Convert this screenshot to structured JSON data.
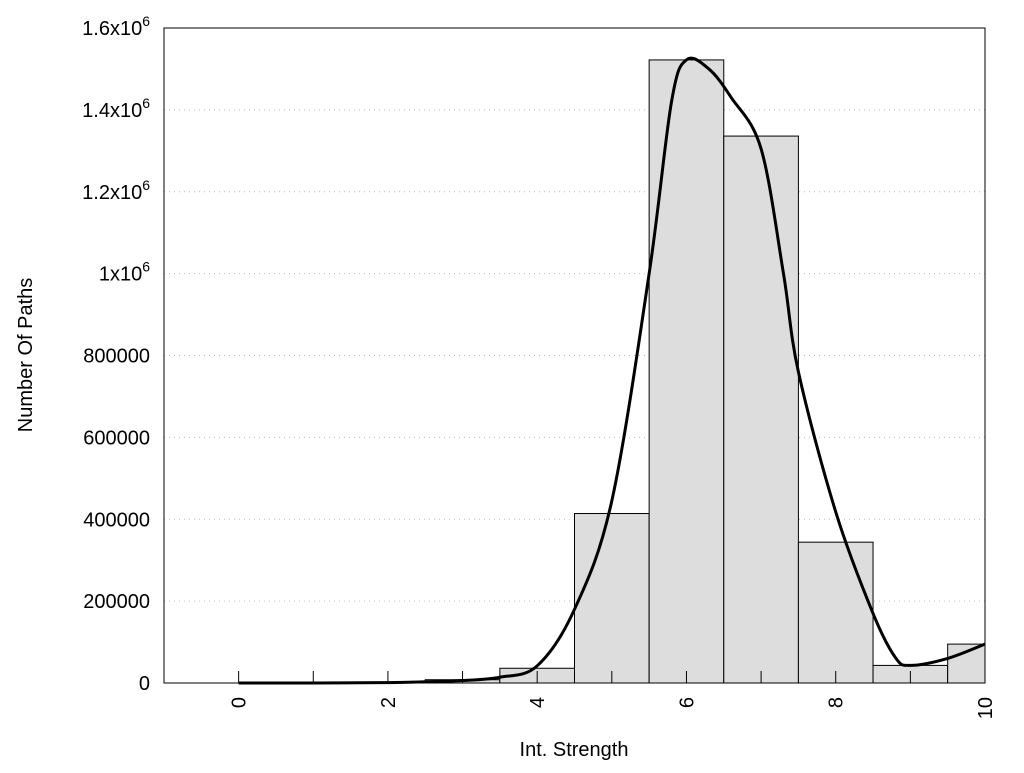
{
  "chart_data": {
    "type": "bar",
    "title": "",
    "xlabel": "Int. Strength",
    "ylabel": "Number Of Paths",
    "xlim": [
      -1,
      10
    ],
    "ylim": [
      0,
      1600000
    ],
    "grid": "horizontal-dotted",
    "x_ticks": [
      0,
      2,
      4,
      6,
      8,
      10
    ],
    "x_tick_labels": [
      "0",
      "2",
      "4",
      "6",
      "8",
      "10"
    ],
    "y_ticks": [
      0,
      200000,
      400000,
      600000,
      800000,
      1000000,
      1200000,
      1400000,
      1600000
    ],
    "y_tick_labels": [
      {
        "base": "0",
        "exp": ""
      },
      {
        "base": "200000",
        "exp": ""
      },
      {
        "base": "400000",
        "exp": ""
      },
      {
        "base": "600000",
        "exp": ""
      },
      {
        "base": "800000",
        "exp": ""
      },
      {
        "base": "1x10",
        "exp": "6"
      },
      {
        "base": "1.2x10",
        "exp": "6"
      },
      {
        "base": "1.4x10",
        "exp": "6"
      },
      {
        "base": "1.6x10",
        "exp": "6"
      }
    ],
    "bars": {
      "x": [
        0,
        1,
        2,
        3,
        4,
        5,
        6,
        7,
        8,
        9,
        10
      ],
      "values": [
        0,
        0,
        1000,
        8000,
        36000,
        414000,
        1522000,
        1336000,
        344000,
        43000,
        95000
      ],
      "width": 1,
      "color": "#dddddd"
    },
    "curve": {
      "x": [
        0,
        1,
        2,
        2.5,
        3,
        3.5,
        4,
        4.5,
        5,
        5.5,
        5.8,
        6,
        6.3,
        6.6,
        7,
        7.3,
        7.5,
        8,
        8.5,
        8.8,
        9,
        9.5,
        10
      ],
      "y": [
        0,
        0,
        1000,
        3000,
        6000,
        14000,
        42000,
        180000,
        445000,
        1000000,
        1420000,
        1522000,
        1500000,
        1430000,
        1305000,
        1000000,
        760000,
        418000,
        170000,
        62000,
        43000,
        60000,
        95000
      ],
      "color": "#000000"
    }
  }
}
